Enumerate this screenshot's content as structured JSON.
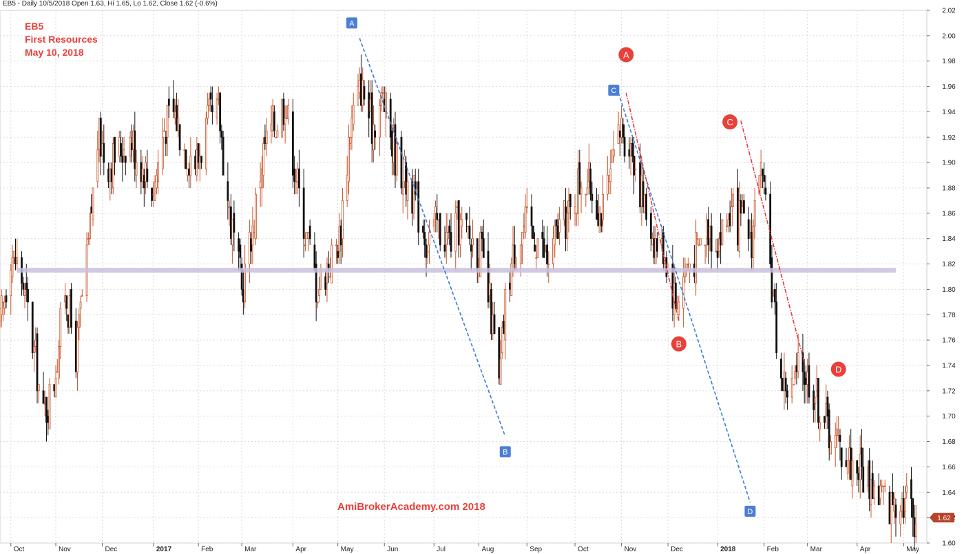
{
  "header": {
    "info": "EB5 - Daily 10/5/2018 Open 1.63, Hi 1.65, Lo 1.62, Close 1.62 (-0.6%)"
  },
  "annotations": {
    "symbol": "EB5",
    "company": "First Resources",
    "date": "May 10, 2018",
    "watermark": "AmiBrokerAcademy.com   2018"
  },
  "colors": {
    "up": "#c8552a",
    "down": "#111111",
    "trend": "#3a7bd5",
    "redtrend": "#e83b3b",
    "support": "#c9c0dd",
    "grid": "#d8d8d8",
    "marker_red": "#e8413a",
    "marker_blue": "#4a7fd4",
    "price_badge": "#b8422a"
  },
  "chart_data": {
    "type": "candlestick",
    "title": "",
    "ylim": [
      1.6,
      2.02
    ],
    "y_ticks": [
      1.6,
      1.62,
      1.64,
      1.66,
      1.68,
      1.7,
      1.72,
      1.74,
      1.76,
      1.78,
      1.8,
      1.82,
      1.84,
      1.86,
      1.88,
      1.9,
      1.92,
      1.94,
      1.96,
      1.98,
      2.0,
      2.02
    ],
    "y_tick_labels": [
      "1.60",
      "1.62",
      "1.64",
      "1.66",
      "1.68",
      "1.70",
      "1.72",
      "1.74",
      "1.76",
      "1.78",
      "1.80",
      "1.82",
      "1.84",
      "1.86",
      "1.88",
      "1.90",
      "1.92",
      "1.94",
      "1.96",
      "1.98",
      "2.00",
      "2.02"
    ],
    "x_start": "2016-09-26",
    "x_end": "2018-05-17",
    "months": [
      {
        "label": "Oct",
        "date": "2016-10-03"
      },
      {
        "label": "Nov",
        "date": "2016-11-01"
      },
      {
        "label": "Dec",
        "date": "2016-12-01"
      },
      {
        "label": "2017",
        "date": "2017-01-03",
        "bold": true
      },
      {
        "label": "Feb",
        "date": "2017-02-01"
      },
      {
        "label": "Mar",
        "date": "2017-03-01"
      },
      {
        "label": "Apr",
        "date": "2017-04-03"
      },
      {
        "label": "May",
        "date": "2017-05-02"
      },
      {
        "label": "Jun",
        "date": "2017-06-01"
      },
      {
        "label": "Jul",
        "date": "2017-07-03"
      },
      {
        "label": "Aug",
        "date": "2017-08-01"
      },
      {
        "label": "Sep",
        "date": "2017-09-01"
      },
      {
        "label": "Oct",
        "date": "2017-10-02"
      },
      {
        "label": "Nov",
        "date": "2017-11-01"
      },
      {
        "label": "Dec",
        "date": "2017-12-01"
      },
      {
        "label": "2018",
        "date": "2018-01-02",
        "bold": true
      },
      {
        "label": "Feb",
        "date": "2018-02-01"
      },
      {
        "label": "Mar",
        "date": "2018-03-01"
      },
      {
        "label": "Apr",
        "date": "2018-04-02"
      },
      {
        "label": "May",
        "date": "2018-05-02"
      }
    ],
    "price_path": [
      [
        "2016-09-26",
        1.77
      ],
      [
        "2016-10-03",
        1.83
      ],
      [
        "2016-10-10",
        1.81
      ],
      [
        "2016-10-17",
        1.76
      ],
      [
        "2016-10-24",
        1.7
      ],
      [
        "2016-10-31",
        1.73
      ],
      [
        "2016-11-07",
        1.8
      ],
      [
        "2016-11-14",
        1.75
      ],
      [
        "2016-11-21",
        1.82
      ],
      [
        "2016-11-28",
        1.92
      ],
      [
        "2016-12-05",
        1.9
      ],
      [
        "2016-12-12",
        1.91
      ],
      [
        "2016-12-19",
        1.92
      ],
      [
        "2016-12-26",
        1.9
      ],
      [
        "2017-01-03",
        1.88
      ],
      [
        "2017-01-10",
        1.93
      ],
      [
        "2017-01-17",
        1.94
      ],
      [
        "2017-01-24",
        1.91
      ],
      [
        "2017-01-31",
        1.9
      ],
      [
        "2017-02-07",
        1.93
      ],
      [
        "2017-02-14",
        1.94
      ],
      [
        "2017-02-21",
        1.86
      ],
      [
        "2017-03-01",
        1.8
      ],
      [
        "2017-03-08",
        1.85
      ],
      [
        "2017-03-15",
        1.91
      ],
      [
        "2017-03-22",
        1.93
      ],
      [
        "2017-03-29",
        1.95
      ],
      [
        "2017-04-05",
        1.89
      ],
      [
        "2017-04-12",
        1.84
      ],
      [
        "2017-04-19",
        1.8
      ],
      [
        "2017-04-26",
        1.82
      ],
      [
        "2017-05-03",
        1.84
      ],
      [
        "2017-05-10",
        1.93
      ],
      [
        "2017-05-17",
        1.96
      ],
      [
        "2017-05-24",
        1.93
      ],
      [
        "2017-05-31",
        1.95
      ],
      [
        "2017-06-07",
        1.91
      ],
      [
        "2017-06-14",
        1.89
      ],
      [
        "2017-06-21",
        1.87
      ],
      [
        "2017-06-28",
        1.84
      ],
      [
        "2017-07-05",
        1.85
      ],
      [
        "2017-07-12",
        1.84
      ],
      [
        "2017-07-19",
        1.85
      ],
      [
        "2017-07-26",
        1.84
      ],
      [
        "2017-08-02",
        1.83
      ],
      [
        "2017-08-09",
        1.78
      ],
      [
        "2017-08-14",
        1.72
      ],
      [
        "2017-08-18",
        1.79
      ],
      [
        "2017-08-25",
        1.84
      ],
      [
        "2017-09-01",
        1.85
      ],
      [
        "2017-09-08",
        1.84
      ],
      [
        "2017-09-15",
        1.82
      ],
      [
        "2017-09-22",
        1.85
      ],
      [
        "2017-09-29",
        1.86
      ],
      [
        "2017-10-06",
        1.89
      ],
      [
        "2017-10-13",
        1.88
      ],
      [
        "2017-10-20",
        1.86
      ],
      [
        "2017-10-27",
        1.9
      ],
      [
        "2017-11-01",
        1.93
      ],
      [
        "2017-11-08",
        1.91
      ],
      [
        "2017-11-15",
        1.87
      ],
      [
        "2017-11-22",
        1.84
      ],
      [
        "2017-11-29",
        1.83
      ],
      [
        "2017-12-06",
        1.79
      ],
      [
        "2017-12-13",
        1.82
      ],
      [
        "2017-12-20",
        1.83
      ],
      [
        "2017-12-27",
        1.85
      ],
      [
        "2018-01-03",
        1.84
      ],
      [
        "2018-01-10",
        1.86
      ],
      [
        "2018-01-17",
        1.85
      ],
      [
        "2018-01-24",
        1.84
      ],
      [
        "2018-01-29",
        1.9
      ],
      [
        "2018-02-02",
        1.86
      ],
      [
        "2018-02-07",
        1.79
      ],
      [
        "2018-02-12",
        1.73
      ],
      [
        "2018-02-19",
        1.72
      ],
      [
        "2018-02-26",
        1.74
      ],
      [
        "2018-03-05",
        1.72
      ],
      [
        "2018-03-12",
        1.7
      ],
      [
        "2018-03-19",
        1.68
      ],
      [
        "2018-03-26",
        1.67
      ],
      [
        "2018-04-02",
        1.66
      ],
      [
        "2018-04-09",
        1.65
      ],
      [
        "2018-04-16",
        1.64
      ],
      [
        "2018-04-23",
        1.63
      ],
      [
        "2018-04-30",
        1.64
      ],
      [
        "2018-05-07",
        1.63
      ],
      [
        "2018-05-10",
        1.62
      ]
    ],
    "support_line": {
      "value": 1.815,
      "from": "2016-10-07",
      "to": "2018-04-27"
    },
    "trendlines": [
      {
        "style": "blue",
        "from": [
          "2017-05-16",
          1.998
        ],
        "to": [
          "2017-08-18",
          1.684
        ]
      },
      {
        "style": "blue",
        "from": [
          "2017-10-30",
          1.955
        ],
        "to": [
          "2018-01-23",
          1.632
        ]
      },
      {
        "style": "red",
        "from": [
          "2017-11-04",
          1.955
        ],
        "to": [
          "2017-12-08",
          1.775
        ]
      },
      {
        "style": "red",
        "from": [
          "2018-01-17",
          1.933
        ],
        "to": [
          "2018-02-27",
          1.742
        ]
      }
    ],
    "square_markers": [
      {
        "label": "A",
        "date": "2017-05-11",
        "value": 2.01
      },
      {
        "label": "B",
        "date": "2017-08-18",
        "value": 1.672
      },
      {
        "label": "C",
        "date": "2017-10-27",
        "value": 1.957
      },
      {
        "label": "D",
        "date": "2018-01-23",
        "value": 1.625
      }
    ],
    "circle_markers": [
      {
        "label": "A",
        "date": "2017-11-04",
        "value": 1.985
      },
      {
        "label": "B",
        "date": "2017-12-08",
        "value": 1.757
      },
      {
        "label": "C",
        "date": "2018-01-10",
        "value": 1.932
      },
      {
        "label": "D",
        "date": "2018-03-21",
        "value": 1.737
      }
    ],
    "last_price": {
      "value": 1.62,
      "label": "1.62"
    }
  }
}
